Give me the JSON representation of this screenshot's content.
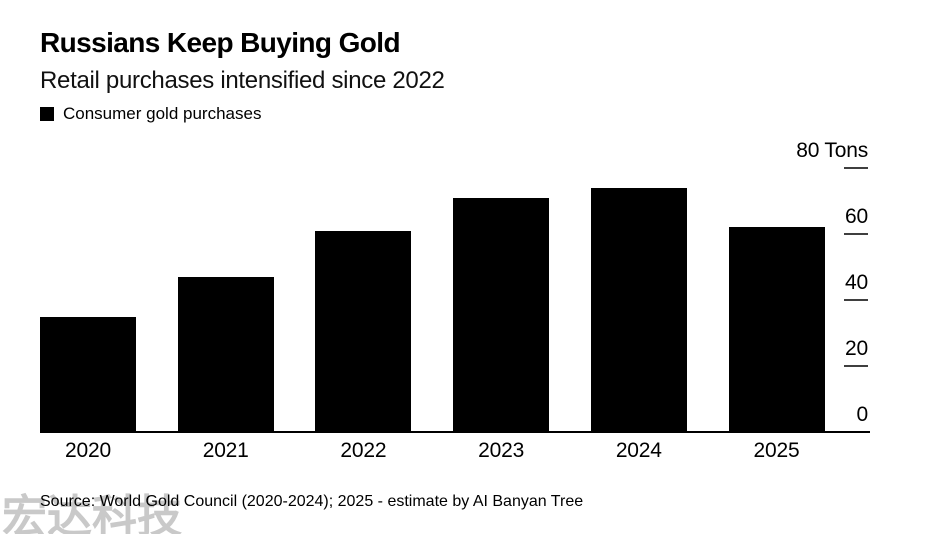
{
  "chart_data": {
    "type": "bar",
    "title": "Russians Keep Buying Gold",
    "subtitle": "Retail purchases intensified since 2022",
    "categories": [
      "2020",
      "2021",
      "2022",
      "2023",
      "2024",
      "2025"
    ],
    "series": [
      {
        "name": "Consumer gold purchases",
        "values": [
          35,
          47,
          61,
          71,
          74,
          62
        ],
        "color": "#000000"
      }
    ],
    "unit": "Tons",
    "ylim": [
      0,
      80
    ],
    "yticks": [
      0,
      20,
      40,
      60,
      80
    ],
    "ytick_labels": [
      "0",
      "20",
      "40",
      "60",
      "80 Tons"
    ],
    "y_axis_side": "right",
    "grid": false,
    "legend_position": "top-left",
    "source_note": "Source: World Gold Council (2020-2024); 2025 - estimate by AI Banyan Tree"
  },
  "watermark": {
    "text": "宏达科技",
    "color": "#c9c9c9"
  },
  "colors": {
    "background": "#ffffff",
    "bar": "#000000",
    "axis_line": "#000000",
    "tick_dash": "#3f3f3f",
    "text": "#000000"
  }
}
